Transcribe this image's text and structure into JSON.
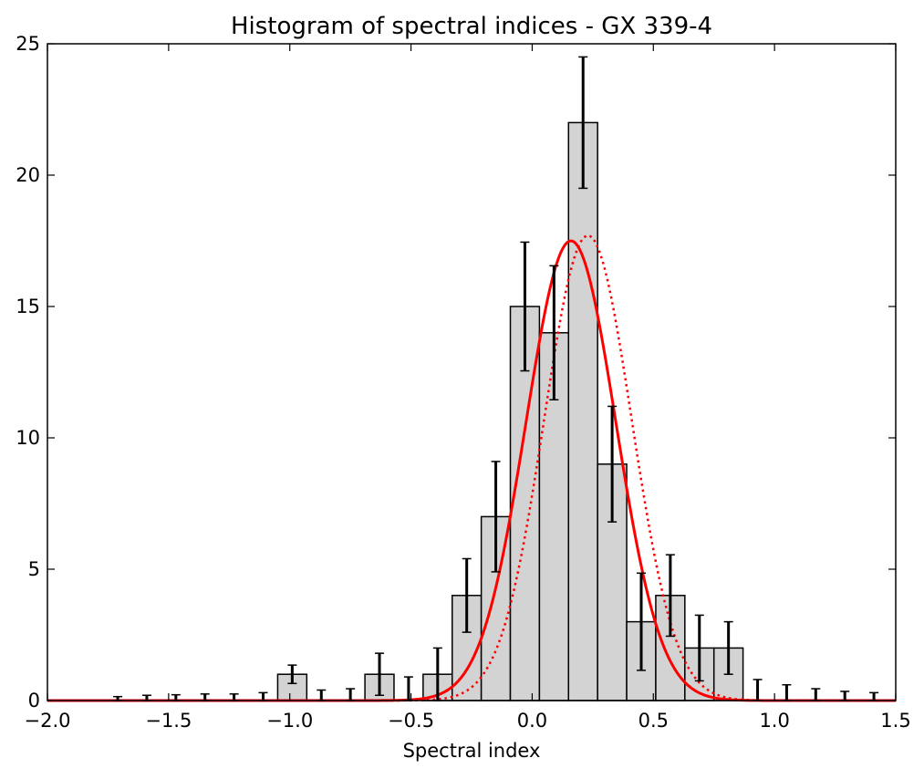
{
  "chart_data": {
    "type": "bar",
    "title": "Histogram of spectral indices - GX 339-4",
    "xlabel": "Spectral index",
    "ylabel": "",
    "xlim": [
      -2.0,
      1.5
    ],
    "ylim": [
      0,
      25
    ],
    "grid": false,
    "x_ticks": [
      -2.0,
      -1.5,
      -1.0,
      -0.5,
      0.0,
      0.5,
      1.0,
      1.5
    ],
    "x_tick_labels": [
      "−2.0",
      "−1.5",
      "−1.0",
      "−0.5",
      "0.0",
      "0.5",
      "1.0",
      "1.5"
    ],
    "y_ticks": [
      0,
      5,
      10,
      15,
      20,
      25
    ],
    "y_tick_labels": [
      "0",
      "5",
      "10",
      "15",
      "20",
      "25"
    ],
    "bin_width": 0.12,
    "bins": [
      {
        "center": -1.71,
        "count": 0,
        "error": 0.15
      },
      {
        "center": -1.59,
        "count": 0,
        "error": 0.2
      },
      {
        "center": -1.47,
        "count": 0,
        "error": 0.22
      },
      {
        "center": -1.35,
        "count": 0,
        "error": 0.25
      },
      {
        "center": -1.23,
        "count": 0,
        "error": 0.25
      },
      {
        "center": -1.11,
        "count": 0,
        "error": 0.3
      },
      {
        "center": -0.99,
        "count": 1,
        "error": 0.35
      },
      {
        "center": -0.87,
        "count": 0,
        "error": 0.4
      },
      {
        "center": -0.75,
        "count": 0,
        "error": 0.45
      },
      {
        "center": -0.63,
        "count": 1,
        "error": 0.8
      },
      {
        "center": -0.51,
        "count": 0,
        "error": 0.9
      },
      {
        "center": -0.39,
        "count": 1,
        "error": 1.0
      },
      {
        "center": -0.27,
        "count": 4,
        "error": 1.4
      },
      {
        "center": -0.15,
        "count": 7,
        "error": 2.1
      },
      {
        "center": -0.03,
        "count": 15,
        "error": 2.45
      },
      {
        "center": 0.09,
        "count": 14,
        "error": 2.55
      },
      {
        "center": 0.21,
        "count": 22,
        "error": 2.5
      },
      {
        "center": 0.33,
        "count": 9,
        "error": 2.2
      },
      {
        "center": 0.45,
        "count": 3,
        "error": 1.85
      },
      {
        "center": 0.57,
        "count": 4,
        "error": 1.55
      },
      {
        "center": 0.69,
        "count": 2,
        "error": 1.25
      },
      {
        "center": 0.81,
        "count": 2,
        "error": 1.0
      },
      {
        "center": 0.93,
        "count": 0,
        "error": 0.8
      },
      {
        "center": 1.05,
        "count": 0,
        "error": 0.6
      },
      {
        "center": 1.17,
        "count": 0,
        "error": 0.45
      },
      {
        "center": 1.29,
        "count": 0,
        "error": 0.35
      },
      {
        "center": 1.41,
        "count": 0,
        "error": 0.3
      }
    ],
    "curves": [
      {
        "style": "solid",
        "color": "#ff0000",
        "model": "gaussian",
        "amplitude": 17.5,
        "mean": 0.16,
        "sigma": 0.185
      },
      {
        "style": "dotted",
        "color": "#ff0000",
        "model": "gaussian",
        "amplitude": 17.7,
        "mean": 0.23,
        "sigma": 0.18
      }
    ],
    "colors": {
      "bar_fill": "#d3d3d3",
      "bar_edge": "#000000",
      "errorbar": "#000000",
      "fit": "#ff0000"
    }
  }
}
